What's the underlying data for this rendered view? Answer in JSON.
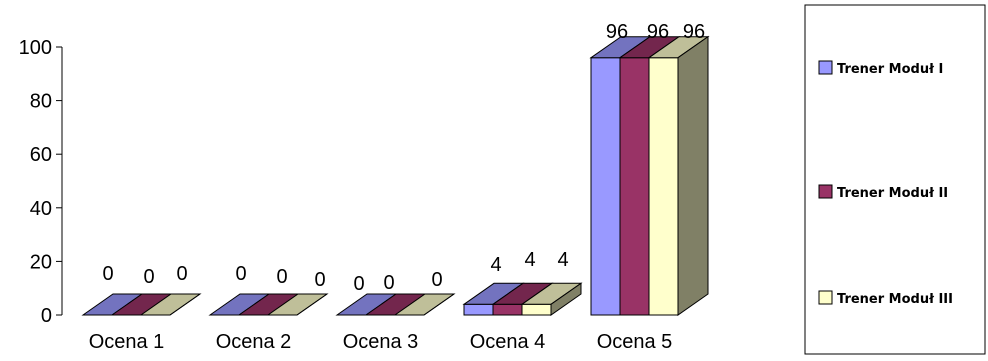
{
  "chart_data": {
    "type": "bar",
    "categories": [
      "Ocena 1",
      "Ocena 2",
      "Ocena 3",
      "Ocena 4",
      "Ocena 5"
    ],
    "series": [
      {
        "name": "Trener Moduł I",
        "values": [
          0,
          0,
          0,
          4,
          96
        ],
        "color": "#9999ff"
      },
      {
        "name": "Trener Moduł II",
        "values": [
          0,
          0,
          0,
          4,
          96
        ],
        "color": "#993366"
      },
      {
        "name": "Trener Moduł III",
        "values": [
          0,
          0,
          0,
          4,
          96
        ],
        "color": "#ffffcc"
      }
    ],
    "ylim": [
      0,
      100
    ],
    "yticks": [
      0,
      20,
      40,
      60,
      80,
      100
    ],
    "ytick_labels": [
      "0",
      "20",
      "40",
      "60",
      "80",
      "100"
    ],
    "data_labels": [
      [
        "0",
        "0",
        "0",
        "4",
        "96"
      ],
      [
        "0",
        "0",
        "0",
        "4",
        "96"
      ],
      [
        "0",
        "0",
        "0",
        "4",
        "96"
      ]
    ],
    "title": "",
    "xlabel": "",
    "ylabel": "",
    "style": "3d-clustered",
    "grid": false,
    "legend": "right"
  }
}
